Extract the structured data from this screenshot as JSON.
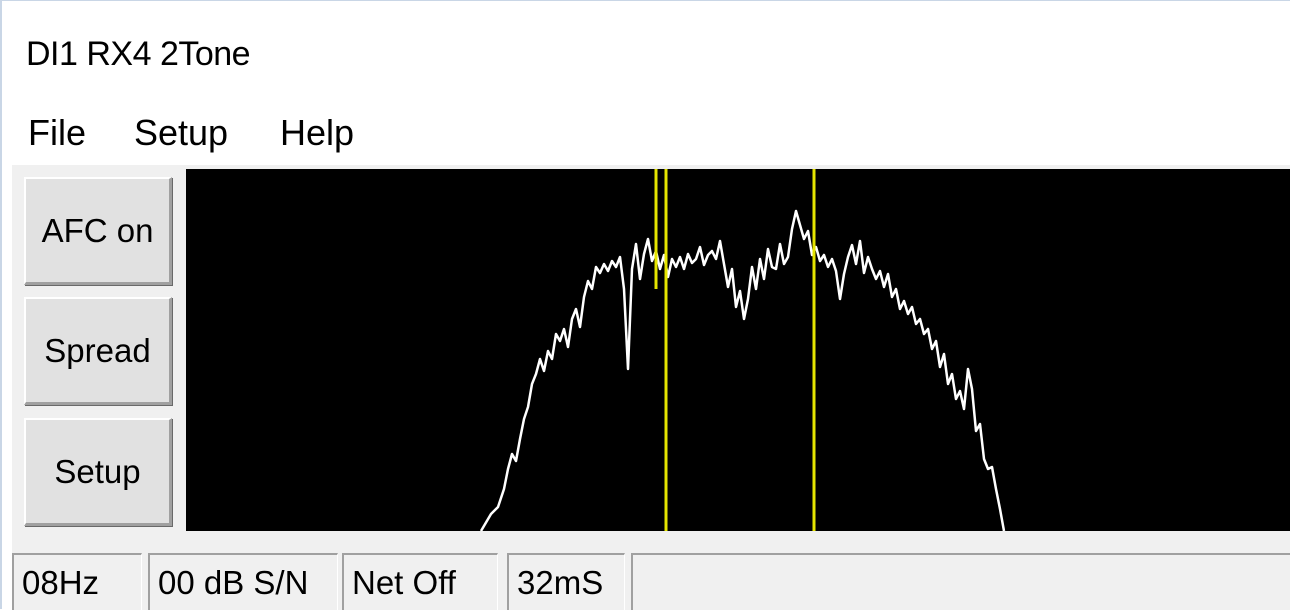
{
  "window": {
    "title": "DI1 RX4 2Tone"
  },
  "menu": {
    "items": [
      "File",
      "Setup",
      "Help"
    ]
  },
  "buttons": {
    "afc": "AFC on",
    "spread": "Spread",
    "setup": "Setup"
  },
  "spectrum": {
    "trace_color": "#ffffff",
    "marker_color": "#e5e500",
    "background": "#000000"
  },
  "status": {
    "offset": "08Hz",
    "snr": "00 dB S/N",
    "net": "Net Off",
    "time": "32mS",
    "message": ""
  }
}
